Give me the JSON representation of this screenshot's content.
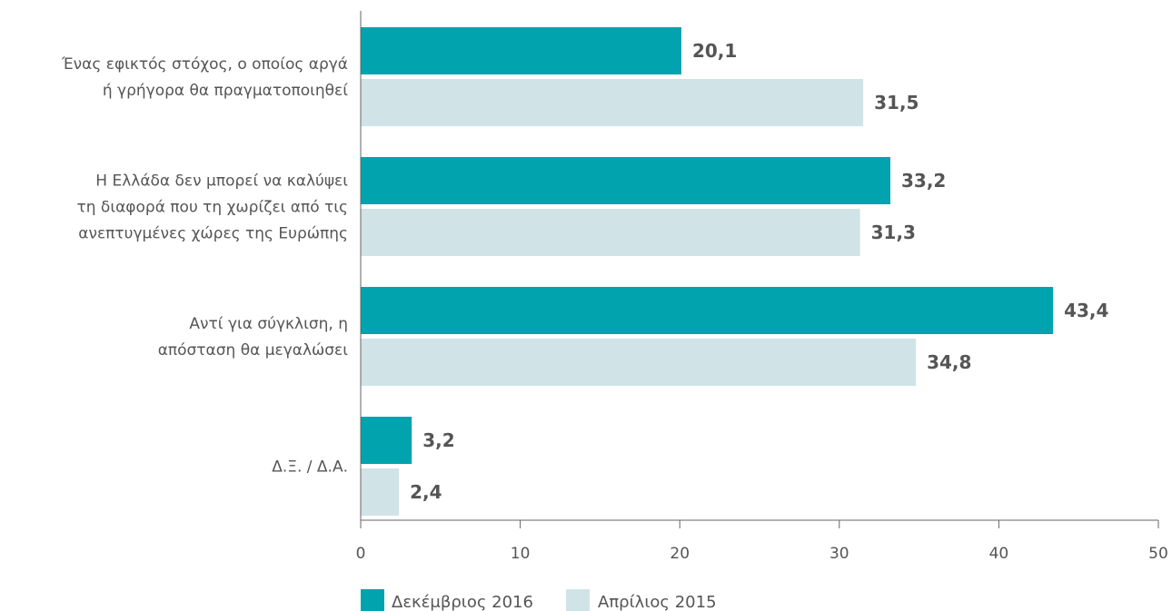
{
  "chart_data": {
    "type": "bar",
    "orientation": "horizontal",
    "categories": [
      [
        "Ένας εφικτός στόχος, ο οποίος αργά",
        "ή γρήγορα θα πραγματοποιηθεί"
      ],
      [
        "Η Ελλάδα δεν μπορεί να καλύψει",
        "τη διαφορά που τη χωρίζει από τις",
        "ανεπτυγμένες χώρες της Ευρώπης"
      ],
      [
        "Αντί για σύγκλιση, η",
        "απόσταση θα μεγαλώσει"
      ],
      [
        "Δ.Ξ. / Δ.Α."
      ]
    ],
    "series": [
      {
        "name": "Δεκέμβριος 2016",
        "color": "#00a3ae",
        "values": [
          20.1,
          33.2,
          43.4,
          3.2
        ],
        "labels": [
          "20,1",
          "33,2",
          "43,4",
          "3,2"
        ]
      },
      {
        "name": "Απρίλιος 2015",
        "color": "#d0e4e8",
        "values": [
          31.5,
          31.3,
          34.8,
          2.4
        ],
        "labels": [
          "31,5",
          "31,3",
          "34,8",
          "2,4"
        ]
      }
    ],
    "xlim": [
      0,
      50
    ],
    "xticks": [
      0,
      10,
      20,
      30,
      40,
      50
    ],
    "xtick_labels": [
      "0",
      "10",
      "20",
      "30",
      "40",
      "50"
    ],
    "grid": false,
    "legend_position": "bottom-left",
    "title": "",
    "xlabel": "",
    "ylabel": ""
  }
}
